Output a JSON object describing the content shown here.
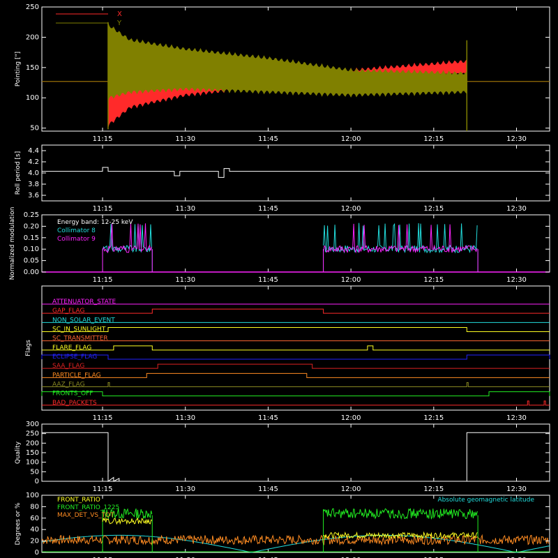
{
  "colors": {
    "background": "#000000",
    "axis": "#ffffff",
    "red": "#ff2a2a",
    "olive": "#808000",
    "cyan": "#22dddd",
    "magenta": "#ff22ff",
    "green": "#22ee22",
    "yellow": "#ffff22",
    "orange": "#ff8c22",
    "blue": "#2222ff",
    "dark_orange": "#cc6633",
    "dark_red": "#dd2222",
    "salmon": "#ff6633",
    "olive_green": "#888822"
  },
  "time_axis": {
    "range": [
      "11:04",
      "12:36"
    ],
    "tick_labels": [
      "11:15",
      "11:30",
      "11:45",
      "12:00",
      "12:15",
      "12:30"
    ],
    "tick_times": [
      "11:15",
      "11:30",
      "11:45",
      "12:00",
      "12:15",
      "12:30"
    ]
  },
  "chart_data": [
    {
      "type": "line",
      "id": "pointing",
      "ylabel": "Pointing [\"]",
      "ylim": [
        45,
        250
      ],
      "yticks": [
        50,
        100,
        150,
        200,
        250
      ],
      "legend_position": "top-left",
      "series": [
        {
          "name": "X",
          "color": "red",
          "baseline": 127,
          "active_start": "11:16",
          "active_end": "12:21",
          "envelope_upper": [
            [
              "11:16",
              180
            ],
            [
              "11:20",
              170
            ],
            [
              "11:30",
              150
            ],
            [
              "11:45",
              140
            ],
            [
              "12:00",
              150
            ],
            [
              "12:21",
              165
            ]
          ],
          "envelope_lower": [
            [
              "11:16",
              50
            ],
            [
              "11:20",
              80
            ],
            [
              "11:30",
              100
            ],
            [
              "11:45",
              115
            ],
            [
              "12:00",
              125
            ],
            [
              "12:21",
              135
            ]
          ]
        },
        {
          "name": "Y",
          "color": "olive",
          "baseline": 127,
          "active_start": "11:16",
          "active_end": "12:21",
          "envelope_upper": [
            [
              "11:16",
              225
            ],
            [
              "11:20",
              200
            ],
            [
              "11:30",
              185
            ],
            [
              "11:45",
              170
            ],
            [
              "12:00",
              150
            ],
            [
              "12:21",
              145
            ]
          ],
          "envelope_lower": [
            [
              "11:16",
              95
            ],
            [
              "11:20",
              105
            ],
            [
              "11:30",
              110
            ],
            [
              "11:45",
              105
            ],
            [
              "12:00",
              100
            ],
            [
              "12:21",
              105
            ]
          ]
        }
      ]
    },
    {
      "type": "line",
      "id": "roll",
      "ylabel": "Roll period [s]",
      "ylim": [
        3.5,
        4.5
      ],
      "yticks": [
        3.6,
        3.8,
        4.0,
        4.2,
        4.4
      ],
      "series": [
        {
          "name": "",
          "color": "axis",
          "points": [
            [
              "11:04",
              4.03
            ],
            [
              "11:15",
              4.03
            ],
            [
              "11:15",
              4.1
            ],
            [
              "11:16",
              4.1
            ],
            [
              "11:16",
              4.03
            ],
            [
              "11:28",
              4.03
            ],
            [
              "11:28",
              3.95
            ],
            [
              "11:29",
              3.95
            ],
            [
              "11:29",
              4.03
            ],
            [
              "11:36",
              4.03
            ],
            [
              "11:36",
              3.92
            ],
            [
              "11:37",
              3.92
            ],
            [
              "11:37",
              4.08
            ],
            [
              "11:38",
              4.08
            ],
            [
              "11:38",
              4.03
            ],
            [
              "12:36",
              4.03
            ]
          ]
        }
      ]
    },
    {
      "type": "line",
      "id": "modulation",
      "ylabel": "Normalized modulation",
      "ylim": [
        0.0,
        0.25
      ],
      "yticks": [
        0.0,
        0.05,
        0.1,
        0.15,
        0.2,
        0.25
      ],
      "legend_position": "top-left",
      "annotation": "Energy band: 12-25 keV",
      "series": [
        {
          "name": "Collimator 8",
          "color": "cyan",
          "level": 0.1,
          "segments": [
            [
              "11:15",
              "11:24"
            ],
            [
              "11:55",
              "12:23"
            ]
          ]
        },
        {
          "name": "Collimator 9",
          "color": "magenta",
          "level": 0.1,
          "segments": [
            [
              "11:15",
              "11:24"
            ],
            [
              "11:55",
              "12:23"
            ]
          ]
        }
      ]
    },
    {
      "type": "line",
      "id": "flags",
      "ylabel": "Flags",
      "series": [
        {
          "name": "ATTENUATOR_STATE",
          "color": "magenta",
          "steps": []
        },
        {
          "name": "GAP_FLAG",
          "color": "red",
          "steps": [
            [
              "11:24",
              "11:55"
            ]
          ]
        },
        {
          "name": "NON_SOLAR_EVENT",
          "color": "cyan",
          "steps": []
        },
        {
          "name": "SC_IN_SUNLIGHT",
          "color": "yellow",
          "steps": [
            [
              "11:16",
              "12:21"
            ]
          ]
        },
        {
          "name": "SC_TRANSMITTER",
          "color": "salmon",
          "steps": []
        },
        {
          "name": "FLARE_FLAG",
          "color": "yellow",
          "steps": [
            [
              "11:17",
              "11:24"
            ],
            [
              "12:03",
              "12:04"
            ]
          ]
        },
        {
          "name": "ECLIPSE_FLAG",
          "color": "blue",
          "steps": [
            [
              "11:04",
              "11:16"
            ],
            [
              "12:21",
              "12:36"
            ]
          ]
        },
        {
          "name": "SAA_FLAG",
          "color": "dark_red",
          "steps": [
            [
              "11:25",
              "11:53"
            ]
          ]
        },
        {
          "name": "PARTICLE_FLAG",
          "color": "orange",
          "steps": [
            [
              "11:23",
              "11:52"
            ]
          ]
        },
        {
          "name": "AAZ_FLAG",
          "color": "olive_green",
          "steps": [
            [
              "11:16",
              "11:16"
            ],
            [
              "12:21",
              "12:21"
            ]
          ]
        },
        {
          "name": "FRONTS_OFF",
          "color": "green",
          "steps": [
            [
              "11:04",
              "11:15"
            ],
            [
              "12:25",
              "12:36"
            ]
          ]
        },
        {
          "name": "BAD_PACKETS",
          "color": "red",
          "steps": [
            [
              "12:32",
              "12:32"
            ],
            [
              "12:35",
              "12:35"
            ]
          ]
        }
      ]
    },
    {
      "type": "line",
      "id": "quality",
      "ylabel": "Quality",
      "ylim": [
        0,
        300
      ],
      "yticks": [
        0,
        50,
        100,
        150,
        200,
        250,
        300
      ],
      "series": [
        {
          "name": "",
          "color": "axis",
          "points": [
            [
              "11:04",
              255
            ],
            [
              "11:16",
              255
            ],
            [
              "11:16",
              0
            ],
            [
              "11:17",
              20
            ],
            [
              "11:17",
              0
            ],
            [
              "11:18",
              15
            ],
            [
              "11:18",
              0
            ],
            [
              "12:21",
              0
            ],
            [
              "12:21",
              255
            ],
            [
              "12:36",
              255
            ]
          ]
        }
      ]
    },
    {
      "type": "line",
      "id": "ratios",
      "ylabel": "Degrees or %",
      "ylim": [
        0,
        100
      ],
      "yticks": [
        0,
        20,
        40,
        60,
        80,
        100
      ],
      "legend_position": "top-left",
      "annotation": "Absolute geomagnetic latitude",
      "series": [
        {
          "name": "FRONT_RATIO",
          "color": "yellow",
          "segments": [
            [
              "11:15",
              "11:24"
            ],
            [
              "11:55",
              "12:23"
            ]
          ]
        },
        {
          "name": "FRONT_RATIO_1225",
          "color": "green",
          "segments": [
            [
              "11:15",
              "11:24"
            ],
            [
              "11:55",
              "12:23"
            ]
          ]
        },
        {
          "name": "MAX_DET_VS_TOT",
          "color": "orange",
          "segments": [
            [
              "11:04",
              "12:36"
            ]
          ]
        },
        {
          "name": "Absolute geomagnetic latitude",
          "color": "cyan"
        }
      ]
    }
  ]
}
